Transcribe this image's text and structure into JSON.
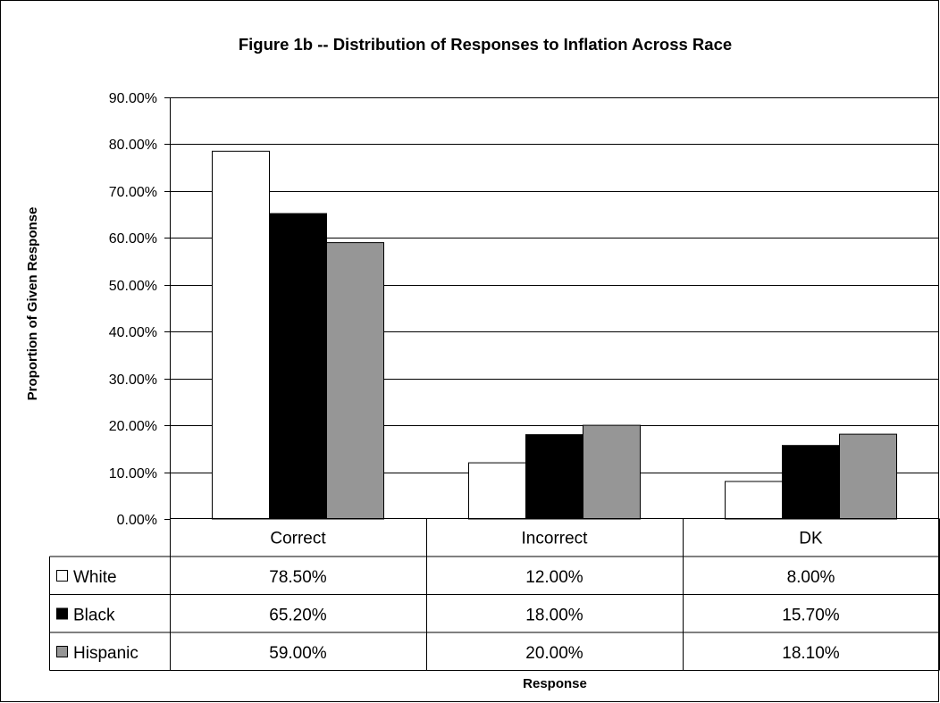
{
  "chart_data": {
    "type": "bar",
    "title": "Figure 1b -- Distribution of Responses to Inflation Across Race",
    "xlabel": "Response",
    "ylabel": "Proportion of Given Response",
    "categories": [
      "Correct",
      "Incorrect",
      "DK"
    ],
    "series": [
      {
        "name": "White",
        "values": [
          78.5,
          12.0,
          8.0
        ],
        "labels": [
          "78.50%",
          "12.00%",
          "8.00%"
        ],
        "color": "#ffffff"
      },
      {
        "name": "Black",
        "values": [
          65.2,
          18.0,
          15.7
        ],
        "labels": [
          "65.20%",
          "18.00%",
          "15.70%"
        ],
        "color": "#000000"
      },
      {
        "name": "Hispanic",
        "values": [
          59.0,
          20.0,
          18.1
        ],
        "labels": [
          "59.00%",
          "20.00%",
          "18.10%"
        ],
        "color": "#969696"
      }
    ],
    "ylim": [
      0,
      90
    ],
    "yticks": [
      "0.00%",
      "10.00%",
      "20.00%",
      "30.00%",
      "40.00%",
      "50.00%",
      "60.00%",
      "70.00%",
      "80.00%",
      "90.00%"
    ],
    "grid": true,
    "legend": "data table below chart"
  }
}
